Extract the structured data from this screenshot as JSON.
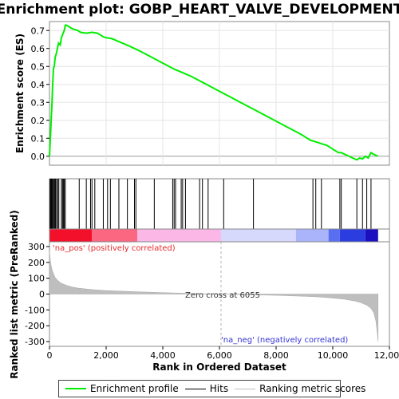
{
  "chart_data": {
    "type": "line",
    "title": "Enrichment plot: GOBP_HEART_VALVE_DEVELOPMENT",
    "top_panel": {
      "ylabel": "Enrichment score (ES)",
      "ylim": [
        -0.05,
        0.75
      ],
      "yticks": [
        0.0,
        0.1,
        0.2,
        0.3,
        0.4,
        0.5,
        0.6,
        0.7
      ],
      "ytick_labels": [
        "0.0",
        "0.1",
        "0.2",
        "0.3",
        "0.4",
        "0.5",
        "0.6",
        "0.7"
      ],
      "series": [
        {
          "name": "Enrichment profile",
          "color": "#00ee00",
          "x": [
            0,
            30,
            60,
            90,
            110,
            140,
            170,
            200,
            240,
            280,
            320,
            380,
            420,
            470,
            520,
            560,
            600,
            800,
            1000,
            1100,
            1300,
            1500,
            1700,
            1900,
            2000,
            2200,
            2500,
            2800,
            3000,
            3200,
            3500,
            3800,
            4100,
            4400,
            4700,
            5000,
            5300,
            5600,
            5900,
            6200,
            6500,
            6800,
            7100,
            7400,
            7700,
            8000,
            8300,
            8600,
            8900,
            9200,
            9500,
            9800,
            10000,
            10200,
            10300,
            10500,
            10700,
            10850,
            10950,
            11050,
            11150,
            11250,
            11350,
            11450,
            11600
          ],
          "y": [
            0.0,
            0.1,
            0.2,
            0.3,
            0.39,
            0.49,
            0.5,
            0.55,
            0.57,
            0.6,
            0.63,
            0.62,
            0.66,
            0.68,
            0.7,
            0.73,
            0.73,
            0.71,
            0.7,
            0.69,
            0.685,
            0.69,
            0.685,
            0.665,
            0.66,
            0.655,
            0.635,
            0.615,
            0.6,
            0.585,
            0.56,
            0.535,
            0.51,
            0.485,
            0.465,
            0.445,
            0.42,
            0.395,
            0.37,
            0.345,
            0.32,
            0.295,
            0.27,
            0.245,
            0.22,
            0.195,
            0.17,
            0.145,
            0.12,
            0.09,
            0.075,
            0.06,
            0.04,
            0.02,
            0.02,
            0.005,
            -0.01,
            -0.02,
            -0.01,
            -0.015,
            0.0,
            -0.01,
            0.02,
            0.01,
            0.0
          ]
        }
      ]
    },
    "hits": {
      "name": "Hits",
      "positions": [
        20,
        45,
        70,
        95,
        120,
        150,
        180,
        210,
        250,
        290,
        330,
        420,
        460,
        490,
        520,
        560,
        1050,
        1300,
        1450,
        1500,
        1600,
        1900,
        2050,
        2150,
        2450,
        2750,
        3000,
        3050,
        3700,
        4350,
        4400,
        4450,
        4650,
        4700,
        4800,
        5300,
        5400,
        5600,
        6150,
        7200,
        9300,
        9400,
        9600,
        10250,
        10300,
        10850,
        11050,
        11200,
        11350
      ]
    },
    "rank_bar": {
      "max_rank": 11600,
      "zero_cross": 6055,
      "segments": [
        {
          "from": 0,
          "to": 1500,
          "color": "#f2102a"
        },
        {
          "from": 1500,
          "to": 3100,
          "color": "#fb6680"
        },
        {
          "from": 3100,
          "to": 6055,
          "color": "#fbb8e6"
        },
        {
          "from": 6055,
          "to": 8700,
          "color": "#d6d9fc"
        },
        {
          "from": 8700,
          "to": 9850,
          "color": "#aab4fb"
        },
        {
          "from": 9850,
          "to": 10250,
          "color": "#5a6ef2"
        },
        {
          "from": 10250,
          "to": 11150,
          "color": "#2c3de0"
        },
        {
          "from": 11150,
          "to": 11600,
          "color": "#1c0fbf"
        }
      ]
    },
    "bottom_panel": {
      "ylabel": "Ranked list metric (PreRanked)",
      "xlabel": "Rank in Ordered Dataset",
      "ylim": [
        -330,
        330
      ],
      "yticks": [
        300,
        200,
        100,
        0,
        -100,
        -200,
        -300
      ],
      "ytick_labels": [
        "300",
        "200",
        "100",
        "0",
        "-100",
        "-200",
        "-300"
      ],
      "xlim": [
        0,
        12000
      ],
      "xticks": [
        0,
        2000,
        4000,
        6000,
        8000,
        10000,
        12000
      ],
      "xtick_labels": [
        "0",
        "2,000",
        "4,000",
        "6,000",
        "8,000",
        "10,000",
        "12,000"
      ],
      "series": [
        {
          "name": "Ranking metric scores",
          "color": "#bebebe",
          "x": [
            0,
            30,
            60,
            100,
            150,
            200,
            300,
            400,
            600,
            800,
            1000,
            1500,
            2000,
            3000,
            4000,
            5000,
            6055,
            7000,
            8000,
            9000,
            9500,
            10000,
            10400,
            10800,
            11000,
            11200,
            11350,
            11450,
            11520,
            11570,
            11600
          ],
          "y": [
            270,
            210,
            180,
            150,
            125,
            105,
            85,
            70,
            55,
            45,
            38,
            28,
            22,
            15,
            9,
            4,
            0,
            -4,
            -8,
            -14,
            -18,
            -25,
            -32,
            -45,
            -55,
            -70,
            -90,
            -120,
            -170,
            -240,
            -300
          ]
        }
      ],
      "annotations": {
        "positive": "'na_pos' (positively correlated)",
        "negative": "'na_neg' (negatively correlated)",
        "zero_cross": "Zero cross at 6055"
      }
    },
    "legend": {
      "items": [
        {
          "label": "Enrichment profile",
          "color": "#00ee00"
        },
        {
          "label": "Hits",
          "color": "#000000"
        },
        {
          "label": "Ranking metric scores",
          "color": "#bebebe"
        }
      ]
    },
    "colors": {
      "pos_text": "#e8282a",
      "neg_text": "#3434d6",
      "zero_line": "#b0b0b0"
    }
  }
}
